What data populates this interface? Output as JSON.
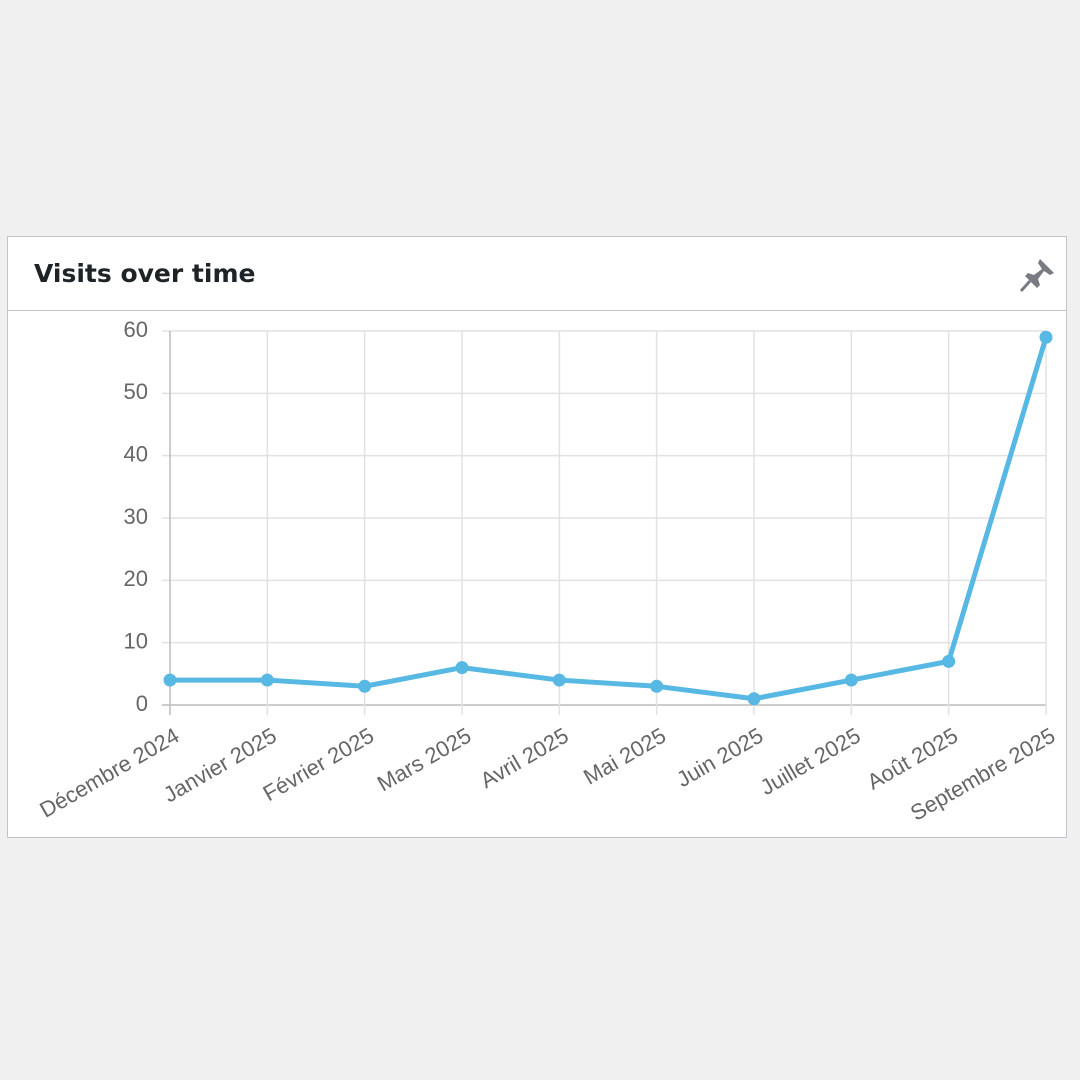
{
  "chart_data": {
    "type": "line",
    "title": "Visits over time",
    "categories": [
      "Décembre 2024",
      "Janvier 2025",
      "Février 2025",
      "Mars 2025",
      "Avril 2025",
      "Mai 2025",
      "Juin 2025",
      "Juillet 2025",
      "Août 2025",
      "Septembre 2025"
    ],
    "values": [
      4,
      4,
      3,
      6,
      4,
      3,
      1,
      4,
      7,
      59
    ],
    "color": "#56b8e3",
    "ylim": [
      0,
      60
    ],
    "yticks": [
      0,
      10,
      20,
      30,
      40,
      50,
      60
    ],
    "grid": true
  }
}
